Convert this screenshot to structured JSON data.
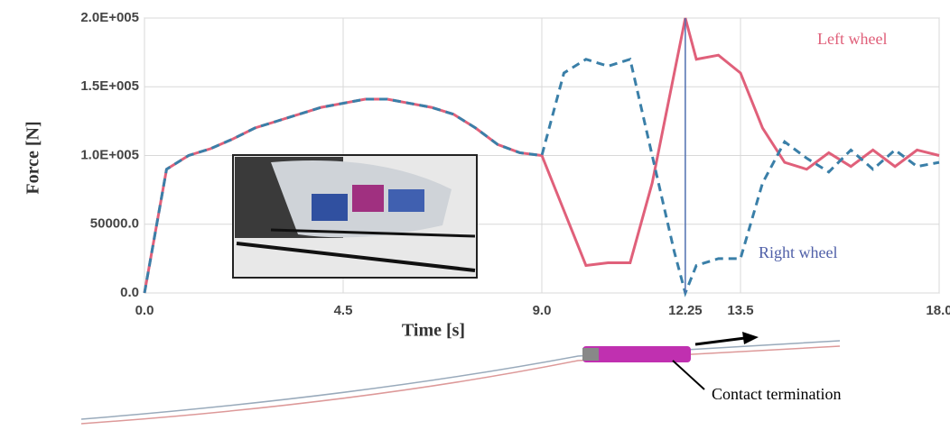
{
  "chart_data": {
    "type": "line",
    "x_label": "Time [s]",
    "y_label": "Force [N]",
    "x": [
      0,
      0.25,
      0.5,
      1,
      1.5,
      2,
      2.5,
      3,
      3.5,
      4,
      4.5,
      5,
      5.5,
      6,
      6.5,
      7,
      7.5,
      8,
      8.5,
      9,
      9.5,
      10,
      10.5,
      11,
      11.5,
      12,
      12.25,
      12.5,
      13,
      13.5,
      14,
      14.5,
      15,
      15.5,
      16,
      16.5,
      17,
      17.5,
      18
    ],
    "series": [
      {
        "name": "Left wheel",
        "color": "#e0607a",
        "dash": false,
        "values": [
          0,
          45000,
          90000,
          100000,
          105000,
          112000,
          120000,
          125000,
          130000,
          135000,
          138000,
          141000,
          141000,
          138000,
          135000,
          130000,
          120000,
          108000,
          102000,
          100000,
          60000,
          20000,
          22000,
          22000,
          80000,
          160000,
          200000,
          170000,
          173000,
          160000,
          120000,
          95000,
          90000,
          102000,
          92000,
          104000,
          92000,
          104000,
          100000
        ]
      },
      {
        "name": "Right wheel",
        "color": "#3a7fa8",
        "dash": true,
        "values": [
          0,
          45000,
          90000,
          100000,
          105000,
          112000,
          120000,
          125000,
          130000,
          135000,
          138000,
          141000,
          141000,
          138000,
          135000,
          130000,
          120000,
          108000,
          102000,
          100000,
          160000,
          170000,
          165000,
          170000,
          100000,
          30000,
          0,
          20000,
          25000,
          25000,
          80000,
          110000,
          98000,
          88000,
          104000,
          90000,
          104000,
          92000,
          95000
        ]
      }
    ],
    "xlim": [
      0,
      18
    ],
    "xticks": [
      {
        "value": 0,
        "label": "0.0"
      },
      {
        "value": 4.5,
        "label": "4.5"
      },
      {
        "value": 9,
        "label": "9.0"
      },
      {
        "value": 12.25,
        "label": "12.25"
      },
      {
        "value": 13.5,
        "label": "13.5"
      },
      {
        "value": 18,
        "label": "18.0"
      }
    ],
    "ylim": [
      0,
      200000
    ],
    "yticks": [
      {
        "value": 0,
        "label": "0.0"
      },
      {
        "value": 50000,
        "label": "50000.0"
      },
      {
        "value": 100000,
        "label": "1.0E+005"
      },
      {
        "value": 150000,
        "label": "1.5E+005"
      },
      {
        "value": 200000,
        "label": "2.0E+005"
      }
    ],
    "grid": true,
    "marker_line_tick": 3,
    "annotation": "Contact termination"
  }
}
